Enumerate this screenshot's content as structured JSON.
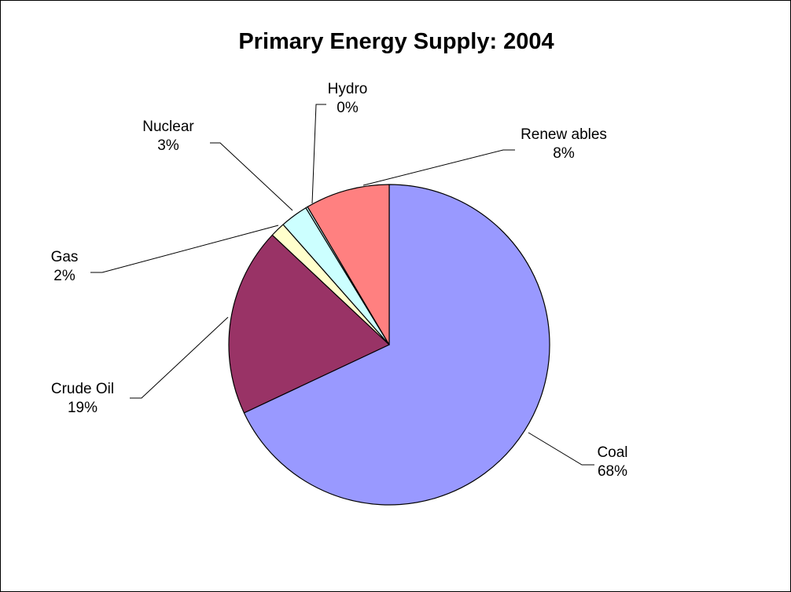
{
  "chart_data": {
    "type": "pie",
    "title": "Primary Energy Supply: 2004",
    "slices": [
      {
        "name": "Coal",
        "value": 68,
        "label": "68%",
        "color": "#9999ff"
      },
      {
        "name": "Crude Oil",
        "value": 19,
        "label": "19%",
        "color": "#993366"
      },
      {
        "name": "Gas",
        "value": 1.5,
        "label": "2%",
        "color": "#ffffcc"
      },
      {
        "name": "Nuclear",
        "value": 2.8,
        "label": "3%",
        "color": "#ccffff"
      },
      {
        "name": "Hydro",
        "value": 0.2,
        "label": "0%",
        "color": "#ccffff"
      },
      {
        "name": "Renew ables",
        "value": 8.5,
        "label": "8%",
        "color": "#ff8080"
      }
    ],
    "start_angle": "12 o'clock",
    "direction": "clockwise",
    "legend": "none",
    "label_position": "outside with leader lines"
  }
}
